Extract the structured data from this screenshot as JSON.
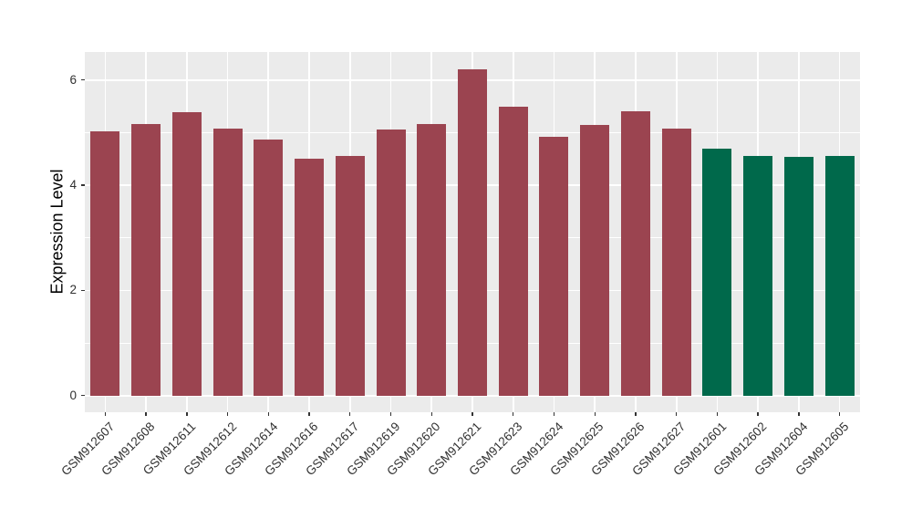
{
  "chart_data": {
    "type": "bar",
    "title": "",
    "ylabel": "Expression Level",
    "xlabel": "",
    "ylim": [
      0,
      6.5
    ],
    "yticks": [
      0,
      2,
      4,
      6
    ],
    "yticks_minor": [
      1,
      3,
      5
    ],
    "grid": "on",
    "legend": "none",
    "panel_bg": "#EBEBEB",
    "grid_color": "#FFFFFF",
    "group_colors": {
      "group1": "#9B4450",
      "group2": "#00694B"
    },
    "categories": [
      "GSM912607",
      "GSM912608",
      "GSM912611",
      "GSM912612",
      "GSM912614",
      "GSM912616",
      "GSM912617",
      "GSM912619",
      "GSM912620",
      "GSM912621",
      "GSM912623",
      "GSM912624",
      "GSM912625",
      "GSM912626",
      "GSM912627",
      "GSM912601",
      "GSM912602",
      "GSM912604",
      "GSM912605"
    ],
    "bars": [
      {
        "label": "GSM912607",
        "value": 5.02,
        "color": "#9B4450"
      },
      {
        "label": "GSM912608",
        "value": 5.16,
        "color": "#9B4450"
      },
      {
        "label": "GSM912611",
        "value": 5.39,
        "color": "#9B4450"
      },
      {
        "label": "GSM912612",
        "value": 5.07,
        "color": "#9B4450"
      },
      {
        "label": "GSM912614",
        "value": 4.86,
        "color": "#9B4450"
      },
      {
        "label": "GSM912616",
        "value": 4.51,
        "color": "#9B4450"
      },
      {
        "label": "GSM912617",
        "value": 4.55,
        "color": "#9B4450"
      },
      {
        "label": "GSM912619",
        "value": 5.06,
        "color": "#9B4450"
      },
      {
        "label": "GSM912620",
        "value": 5.17,
        "color": "#9B4450"
      },
      {
        "label": "GSM912621",
        "value": 6.21,
        "color": "#9B4450"
      },
      {
        "label": "GSM912623",
        "value": 5.5,
        "color": "#9B4450"
      },
      {
        "label": "GSM912624",
        "value": 4.92,
        "color": "#9B4450"
      },
      {
        "label": "GSM912625",
        "value": 5.15,
        "color": "#9B4450"
      },
      {
        "label": "GSM912626",
        "value": 5.41,
        "color": "#9B4450"
      },
      {
        "label": "GSM912627",
        "value": 5.07,
        "color": "#9B4450"
      },
      {
        "label": "GSM912601",
        "value": 4.7,
        "color": "#00694B"
      },
      {
        "label": "GSM912602",
        "value": 4.55,
        "color": "#00694B"
      },
      {
        "label": "GSM912604",
        "value": 4.53,
        "color": "#00694B"
      },
      {
        "label": "GSM912605",
        "value": 4.55,
        "color": "#00694B"
      }
    ]
  }
}
